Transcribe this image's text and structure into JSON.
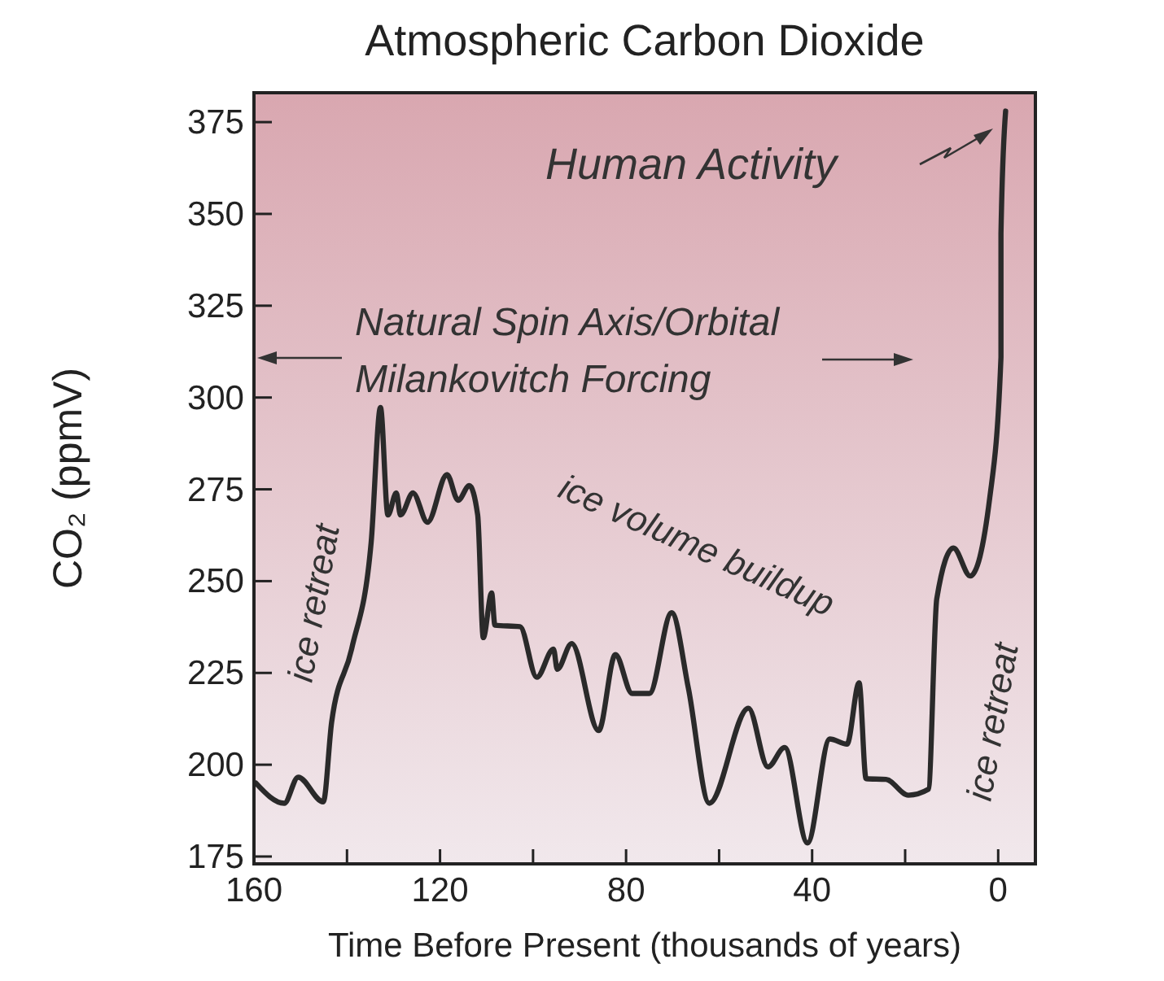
{
  "chart_data": {
    "type": "line",
    "title": "Atmospheric Carbon Dioxide",
    "xlabel": "Time Before Present (thousands of years)",
    "ylabel": "CO₂ (ppmV)",
    "x": [
      159.6,
      153.5,
      150.5,
      145.1,
      143.3,
      139,
      134.8,
      132.8,
      131.2,
      129.4,
      128.5,
      125.8,
      122.7,
      118.5,
      116.1,
      113.7,
      111.9,
      110.7,
      108.9,
      108.2,
      102.8,
      99.2,
      95.6,
      94.8,
      91.7,
      85.9,
      82.3,
      78.7,
      75,
      70.2,
      66.6,
      62.1,
      53.7,
      49.5,
      45.9,
      41,
      36.2,
      32.5,
      29.9,
      28.4,
      24.1,
      19.3,
      15,
      13.2,
      9.6,
      6,
      1.8,
      -0.6,
      -0.6,
      -1.6
    ],
    "series": [
      {
        "color": "#2a2a2a",
        "values": [
          195,
          189.5,
          196.6,
          189.9,
          211.6,
          231.5,
          260.6,
          297.3,
          268,
          274,
          268,
          274,
          266,
          279,
          272,
          276,
          268,
          234.6,
          246.8,
          238,
          237.6,
          223.8,
          231.5,
          226,
          233,
          209.3,
          230,
          219.4,
          219.4,
          241.4,
          220.8,
          189.5,
          215.4,
          199.4,
          204.7,
          178.7,
          207,
          205.6,
          222.3,
          196.2,
          196,
          191.7,
          193.3,
          245.2,
          259,
          251.4,
          272.8,
          311,
          344.7,
          378
        ]
      }
    ],
    "xlim": [
      160,
      -8
    ],
    "ylim": [
      173,
      383
    ],
    "xticks": [
      160,
      {
        "value": 140,
        "label": null
      },
      120,
      {
        "value": 100,
        "label": null
      },
      80,
      {
        "value": 60,
        "label": null
      },
      40,
      {
        "value": 20,
        "label": null
      },
      0
    ],
    "yticks": [
      175,
      200,
      225,
      250,
      275,
      300,
      325,
      350,
      375
    ],
    "marker": "none",
    "line_style": "solid",
    "annotations": [
      "Human Activity",
      "Natural Spin Axis/Orbital",
      "Milankovitch Forcing",
      "ice retreat",
      "ice volume buildup",
      "ice retreat"
    ]
  }
}
